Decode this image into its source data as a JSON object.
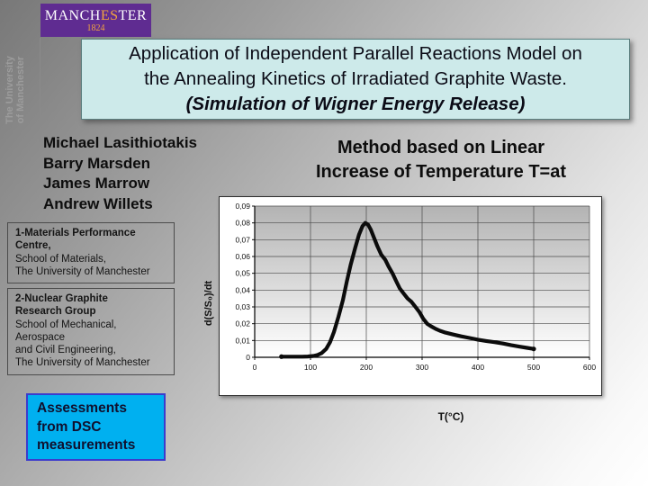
{
  "slide": {
    "logo": {
      "brand_prefix": "MANCH",
      "brand_highlight": "ES",
      "brand_suffix": "TER",
      "year": "1824",
      "bg_color": "#5f2c91",
      "highlight_color": "#f0a43f"
    },
    "side_brand": {
      "line1": "The University",
      "line2": "of Manchester"
    },
    "title": {
      "line1": "Application of Independent Parallel Reactions Model on",
      "line2": "the Annealing Kinetics of Irradiated Graphite Waste.",
      "line3": "(Simulation of Wigner Energy Release)",
      "bg_color": "#cdeaea"
    },
    "authors": [
      "Michael Lasithiotakis",
      "Barry Marsden",
      "James Marrow",
      "Andrew Willets"
    ],
    "method_note": {
      "line1": "Method based on Linear",
      "line2": "Increase of Temperature T=at"
    },
    "affiliations": [
      {
        "bold_lines": [
          "1-Materials Performance",
          "Centre,"
        ],
        "lines": [
          "School of Materials,",
          "The University of Manchester"
        ]
      },
      {
        "bold_lines": [
          "2-Nuclear Graphite",
          "Research Group"
        ],
        "lines": [
          "School of Mechanical,",
          "Aerospace",
          "and Civil Engineering,",
          "The University of Manchester"
        ]
      }
    ],
    "callout": {
      "lines": [
        "Assessments",
        "from DSC",
        "measurements"
      ],
      "bg_color": "#00b0f0",
      "border_color": "#3c3ccc"
    }
  },
  "chart_data": {
    "type": "line",
    "title": "",
    "xlabel": "T(°C)",
    "ylabel": "d(S/S₀)/dt",
    "xlim": [
      0,
      600
    ],
    "ylim": [
      0,
      0.09
    ],
    "x_ticks": [
      0,
      100,
      200,
      300,
      400,
      500,
      600
    ],
    "x_tick_labels": [
      "0",
      "100",
      "200",
      "300",
      "400",
      "500",
      "600"
    ],
    "y_ticks": [
      0,
      0.01,
      0.02,
      0.03,
      0.04,
      0.05,
      0.06,
      0.07,
      0.08,
      0.09
    ],
    "y_tick_labels": [
      "0",
      "0,01",
      "0,02",
      "0,03",
      "0,04",
      "0,05",
      "0,06",
      "0,07",
      "0,08",
      "0,09"
    ],
    "grid": true,
    "legend": "none",
    "line_color": "#0b0b0b",
    "plot_bg_top": "#b3b3b3",
    "plot_bg_bottom": "#ffffff",
    "x": [
      48,
      55,
      65,
      75,
      85,
      95,
      105,
      112,
      120,
      128,
      135,
      142,
      150,
      158,
      165,
      172,
      180,
      187,
      193,
      198,
      203,
      208,
      214,
      220,
      227,
      234,
      240,
      247,
      254,
      260,
      267,
      274,
      281,
      288,
      295,
      302,
      309,
      316,
      324,
      332,
      342,
      355,
      370,
      385,
      400,
      415,
      430,
      445,
      460,
      475,
      488,
      500
    ],
    "series": [
      {
        "name": "d(S/S0)/dt vs T",
        "values": [
          0.0004,
          0.0004,
          0.0004,
          0.0004,
          0.0004,
          0.0005,
          0.0008,
          0.0013,
          0.0025,
          0.005,
          0.009,
          0.015,
          0.024,
          0.034,
          0.045,
          0.055,
          0.065,
          0.073,
          0.078,
          0.08,
          0.079,
          0.076,
          0.071,
          0.066,
          0.061,
          0.058,
          0.054,
          0.05,
          0.045,
          0.041,
          0.038,
          0.035,
          0.033,
          0.03,
          0.027,
          0.023,
          0.02,
          0.0185,
          0.017,
          0.0158,
          0.0147,
          0.0136,
          0.0125,
          0.0115,
          0.0105,
          0.0097,
          0.009,
          0.0082,
          0.0072,
          0.0063,
          0.0056,
          0.005
        ]
      }
    ]
  }
}
